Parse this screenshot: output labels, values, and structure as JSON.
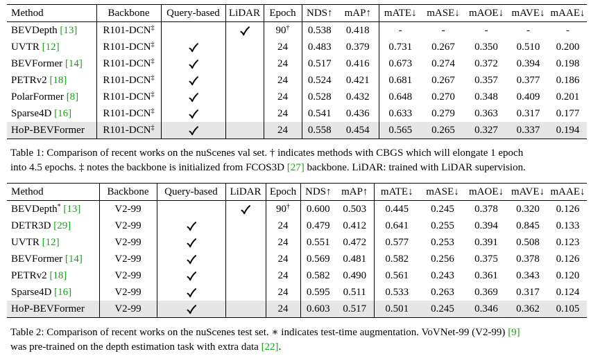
{
  "table1": {
    "headers": [
      "Method",
      "Backbone",
      "Query-based",
      "LiDAR",
      "Epoch",
      "NDS↑",
      "mAP↑",
      "mATE↓",
      "mASE↓",
      "mAOE↓",
      "mAVE↓",
      "mAAE↓"
    ],
    "rows": [
      {
        "method": "BEVDepth",
        "method_sup": "",
        "cite": "[13]",
        "backbone": "R101-DCN",
        "backbone_sup": "‡",
        "query": "",
        "lidar": "✓",
        "epoch": "90",
        "epoch_sup": "†",
        "nds": "0.538",
        "map": "0.418",
        "mate": "-",
        "mase": "-",
        "maoe": "-",
        "mave": "-",
        "maae": "-"
      },
      {
        "method": "UVTR",
        "method_sup": "",
        "cite": "[12]",
        "backbone": "R101-DCN",
        "backbone_sup": "‡",
        "query": "✓",
        "lidar": "",
        "epoch": "24",
        "epoch_sup": "",
        "nds": "0.483",
        "map": "0.379",
        "mate": "0.731",
        "mase": "0.267",
        "maoe": "0.350",
        "mave": "0.510",
        "maae": "0.200"
      },
      {
        "method": "BEVFormer",
        "method_sup": "",
        "cite": "[14]",
        "backbone": "R101-DCN",
        "backbone_sup": "‡",
        "query": "✓",
        "lidar": "",
        "epoch": "24",
        "epoch_sup": "",
        "nds": "0.517",
        "map": "0.416",
        "mate": "0.673",
        "mase": "0.274",
        "maoe": "0.372",
        "mave": "0.394",
        "maae": "0.198"
      },
      {
        "method": "PETRv2",
        "method_sup": "",
        "cite": "[18]",
        "backbone": "R101-DCN",
        "backbone_sup": "‡",
        "query": "✓",
        "lidar": "",
        "epoch": "24",
        "epoch_sup": "",
        "nds": "0.524",
        "map": "0.421",
        "mate": "0.681",
        "mase": "0.267",
        "maoe": "0.357",
        "mave": "0.377",
        "maae": "0.186"
      },
      {
        "method": "PolarFormer",
        "method_sup": "",
        "cite": "[8]",
        "backbone": "R101-DCN",
        "backbone_sup": "‡",
        "query": "✓",
        "lidar": "",
        "epoch": "24",
        "epoch_sup": "",
        "nds": "0.528",
        "map": "0.432",
        "mate": "0.648",
        "mase": "0.270",
        "maoe": "0.348",
        "mave": "0.409",
        "maae": "0.201"
      },
      {
        "method": "Sparse4D",
        "method_sup": "",
        "cite": "[16]",
        "backbone": "R101-DCN",
        "backbone_sup": "‡",
        "query": "✓",
        "lidar": "",
        "epoch": "24",
        "epoch_sup": "",
        "nds": "0.541",
        "map": "0.436",
        "mate": "0.633",
        "mase": "0.279",
        "maoe": "0.363",
        "mave": "0.317",
        "maae": "0.177"
      },
      {
        "method": "HoP-BEVFormer",
        "method_sup": "",
        "cite": "",
        "backbone": "R101-DCN",
        "backbone_sup": "‡",
        "query": "✓",
        "lidar": "",
        "epoch": "24",
        "epoch_sup": "",
        "nds": "0.558",
        "map": "0.454",
        "mate": "0.565",
        "mase": "0.265",
        "maoe": "0.327",
        "mave": "0.337",
        "maae": "0.194"
      }
    ],
    "bold": [
      [
        5,
        "mave"
      ],
      [
        5,
        "maae"
      ],
      [
        6,
        "nds"
      ],
      [
        6,
        "map"
      ],
      [
        6,
        "mate"
      ],
      [
        6,
        "mase"
      ],
      [
        6,
        "maoe"
      ]
    ],
    "highlight_row": 6,
    "caption_line1": "Table 1: Comparison of recent works on the nuScenes val set. † indicates methods with CBGS which will elongate 1 epoch",
    "caption_line2_pre": "into 4.5 epochs. ‡ notes the backbone is initialized from FCOS3D ",
    "caption_line2_cite": "[27]",
    "caption_line2_post": " backbone. LiDAR: trained with LiDAR supervision."
  },
  "table2": {
    "headers": [
      "Method",
      "Backbone",
      "Query-based",
      "LiDAR",
      "Epoch",
      "NDS↑",
      "mAP↑",
      "mATE↓",
      "mASE↓",
      "mAOE↓",
      "mAVE↓",
      "mAAE↓"
    ],
    "rows": [
      {
        "method": "BEVDepth",
        "method_sup": "*",
        "cite": "[13]",
        "backbone": "V2-99",
        "backbone_sup": "",
        "query": "",
        "lidar": "✓",
        "epoch": "90",
        "epoch_sup": "†",
        "nds": "0.600",
        "map": "0.503",
        "mate": "0.445",
        "mase": "0.245",
        "maoe": "0.378",
        "mave": "0.320",
        "maae": "0.126"
      },
      {
        "method": "DETR3D",
        "method_sup": "",
        "cite": "[29]",
        "backbone": "V2-99",
        "backbone_sup": "",
        "query": "✓",
        "lidar": "",
        "epoch": "24",
        "epoch_sup": "",
        "nds": "0.479",
        "map": "0.412",
        "mate": "0.641",
        "mase": "0.255",
        "maoe": "0.394",
        "mave": "0.845",
        "maae": "0.133"
      },
      {
        "method": "UVTR",
        "method_sup": "",
        "cite": "[12]",
        "backbone": "V2-99",
        "backbone_sup": "",
        "query": "✓",
        "lidar": "",
        "epoch": "24",
        "epoch_sup": "",
        "nds": "0.551",
        "map": "0.472",
        "mate": "0.577",
        "mase": "0.253",
        "maoe": "0.391",
        "mave": "0.508",
        "maae": "0.123"
      },
      {
        "method": "BEVFormer",
        "method_sup": "",
        "cite": "[14]",
        "backbone": "V2-99",
        "backbone_sup": "",
        "query": "✓",
        "lidar": "",
        "epoch": "24",
        "epoch_sup": "",
        "nds": "0.569",
        "map": "0.481",
        "mate": "0.582",
        "mase": "0.256",
        "maoe": "0.375",
        "mave": "0.378",
        "maae": "0.126"
      },
      {
        "method": "PETRv2",
        "method_sup": "",
        "cite": "[18]",
        "backbone": "V2-99",
        "backbone_sup": "",
        "query": "✓",
        "lidar": "",
        "epoch": "24",
        "epoch_sup": "",
        "nds": "0.582",
        "map": "0.490",
        "mate": "0.561",
        "mase": "0.243",
        "maoe": "0.361",
        "mave": "0.343",
        "maae": "0.120"
      },
      {
        "method": "Sparse4D",
        "method_sup": "",
        "cite": "[16]",
        "backbone": "V2-99",
        "backbone_sup": "",
        "query": "✓",
        "lidar": "",
        "epoch": "24",
        "epoch_sup": "",
        "nds": "0.595",
        "map": "0.511",
        "mate": "0.533",
        "mase": "0.263",
        "maoe": "0.369",
        "mave": "0.317",
        "maae": "0.124"
      },
      {
        "method": "HoP-BEVFormer",
        "method_sup": "",
        "cite": "",
        "backbone": "V2-99",
        "backbone_sup": "",
        "query": "✓",
        "lidar": "",
        "epoch": "24",
        "epoch_sup": "",
        "nds": "0.603",
        "map": "0.517",
        "mate": "0.501",
        "mase": "0.245",
        "maoe": "0.346",
        "mave": "0.362",
        "maae": "0.105"
      }
    ],
    "bold": [
      [
        0,
        "mate"
      ],
      [
        4,
        "mase"
      ],
      [
        5,
        "mave"
      ],
      [
        6,
        "nds"
      ],
      [
        6,
        "map"
      ],
      [
        6,
        "maoe"
      ],
      [
        6,
        "maae"
      ]
    ],
    "highlight_row": 6,
    "caption_line1_pre": "Table 2: Comparison of recent works on the nuScenes test set. ∗ indicates test-time augmentation. VoVNet-99 (V2-99) ",
    "caption_line1_cite": "[9]",
    "caption_line2_pre": "was pre-trained on the depth estimation task with extra data ",
    "caption_line2_cite": "[22]",
    "caption_line2_post": "."
  }
}
